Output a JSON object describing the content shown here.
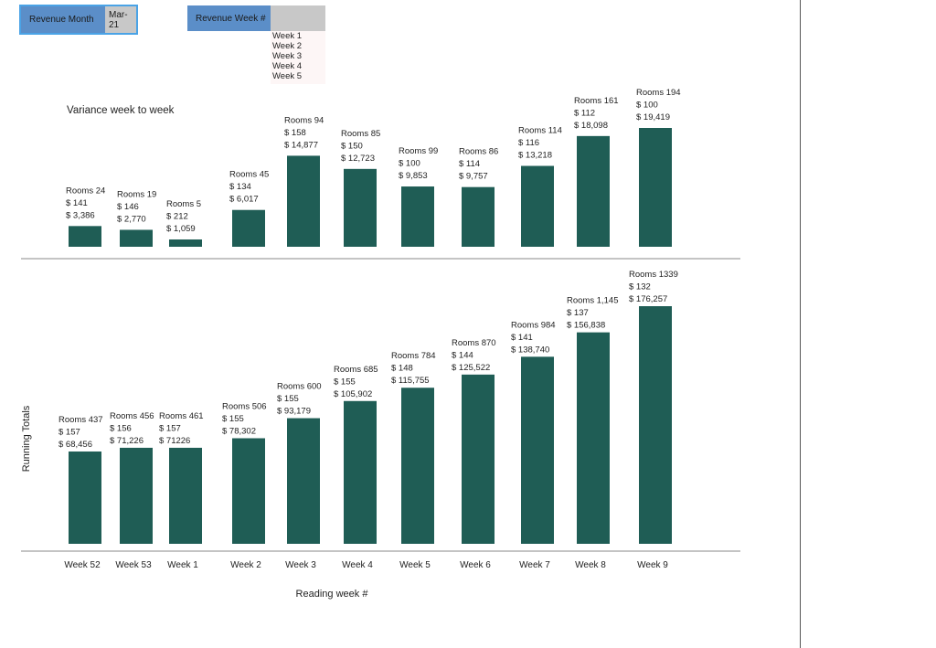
{
  "filters": {
    "month_label": "Revenue Month",
    "month_value": "Mar-21",
    "week_label": "Revenue Week #",
    "week_value": "",
    "week_options": [
      "Week 1",
      "Week 2",
      "Week 3",
      "Week 4",
      "Week 5"
    ]
  },
  "colors": {
    "bar": "#1f5d55",
    "filter_label_bg": "#5b8ec8",
    "filter_value_bg": "#c8c8c8"
  },
  "chart_data": [
    {
      "type": "bar",
      "title": "Variance week to week",
      "categories": [
        "Week 52",
        "Week 53",
        "Week 1",
        "Week 2",
        "Week 3",
        "Week 4",
        "Week 5",
        "Week 6",
        "Week 7",
        "Week 8",
        "Week 9"
      ],
      "values": [
        3386,
        2770,
        1059,
        6017,
        14877,
        12723,
        9853,
        9757,
        13218,
        18098,
        19419
      ],
      "data_labels": [
        [
          "Rooms 24",
          "$ 141",
          "$ 3,386"
        ],
        [
          "Rooms 19",
          "$ 146",
          "$ 2,770"
        ],
        [
          "Rooms 5",
          "$ 212",
          "$ 1,059"
        ],
        [
          "Rooms 45",
          "$ 134",
          "$ 6,017"
        ],
        [
          "Rooms 94",
          "$ 158",
          "$ 14,877"
        ],
        [
          "Rooms 85",
          "$ 150",
          "$ 12,723"
        ],
        [
          "Rooms 99",
          "$ 100",
          "$ 9,853"
        ],
        [
          "Rooms 86",
          "$ 114",
          "$ 9,757"
        ],
        [
          "Rooms 114",
          "$ 116",
          "$ 13,218"
        ],
        [
          "Rooms 161",
          "$ 112",
          "$ 18,098"
        ],
        [
          "Rooms 194",
          "$ 100",
          "$ 19,419"
        ]
      ],
      "legend": "none",
      "grid": false
    },
    {
      "type": "bar",
      "ylabel": "Running Totals",
      "xlabel": "Reading week #",
      "categories": [
        "Week 52",
        "Week 53",
        "Week 1",
        "Week 2",
        "Week 3",
        "Week 4",
        "Week 5",
        "Week 6",
        "Week 7",
        "Week 8",
        "Week 9"
      ],
      "values": [
        68456,
        71226,
        71226,
        78302,
        93179,
        105902,
        115755,
        125522,
        138740,
        156838,
        176257
      ],
      "data_labels": [
        [
          "Rooms 437",
          "$ 157",
          "$ 68,456"
        ],
        [
          "Rooms 456",
          "$ 156",
          "$ 71,226"
        ],
        [
          "Rooms 461",
          "$ 157",
          "$ 71226"
        ],
        [
          "Rooms 506",
          "$ 155",
          "$ 78,302"
        ],
        [
          "Rooms 600",
          "$ 155",
          "$ 93,179"
        ],
        [
          "Rooms 685",
          "$ 155",
          "$ 105,902"
        ],
        [
          "Rooms 784",
          "$ 148",
          "$ 115,755"
        ],
        [
          "Rooms 870",
          "$ 144",
          "$ 125,522"
        ],
        [
          "Rooms 984",
          "$ 141",
          "$ 138,740"
        ],
        [
          "Rooms 1,145",
          "$ 137",
          "$ 156,838"
        ],
        [
          "Rooms 1339",
          "$ 132",
          "$ 176,257"
        ]
      ],
      "legend": "none",
      "grid": false
    }
  ]
}
